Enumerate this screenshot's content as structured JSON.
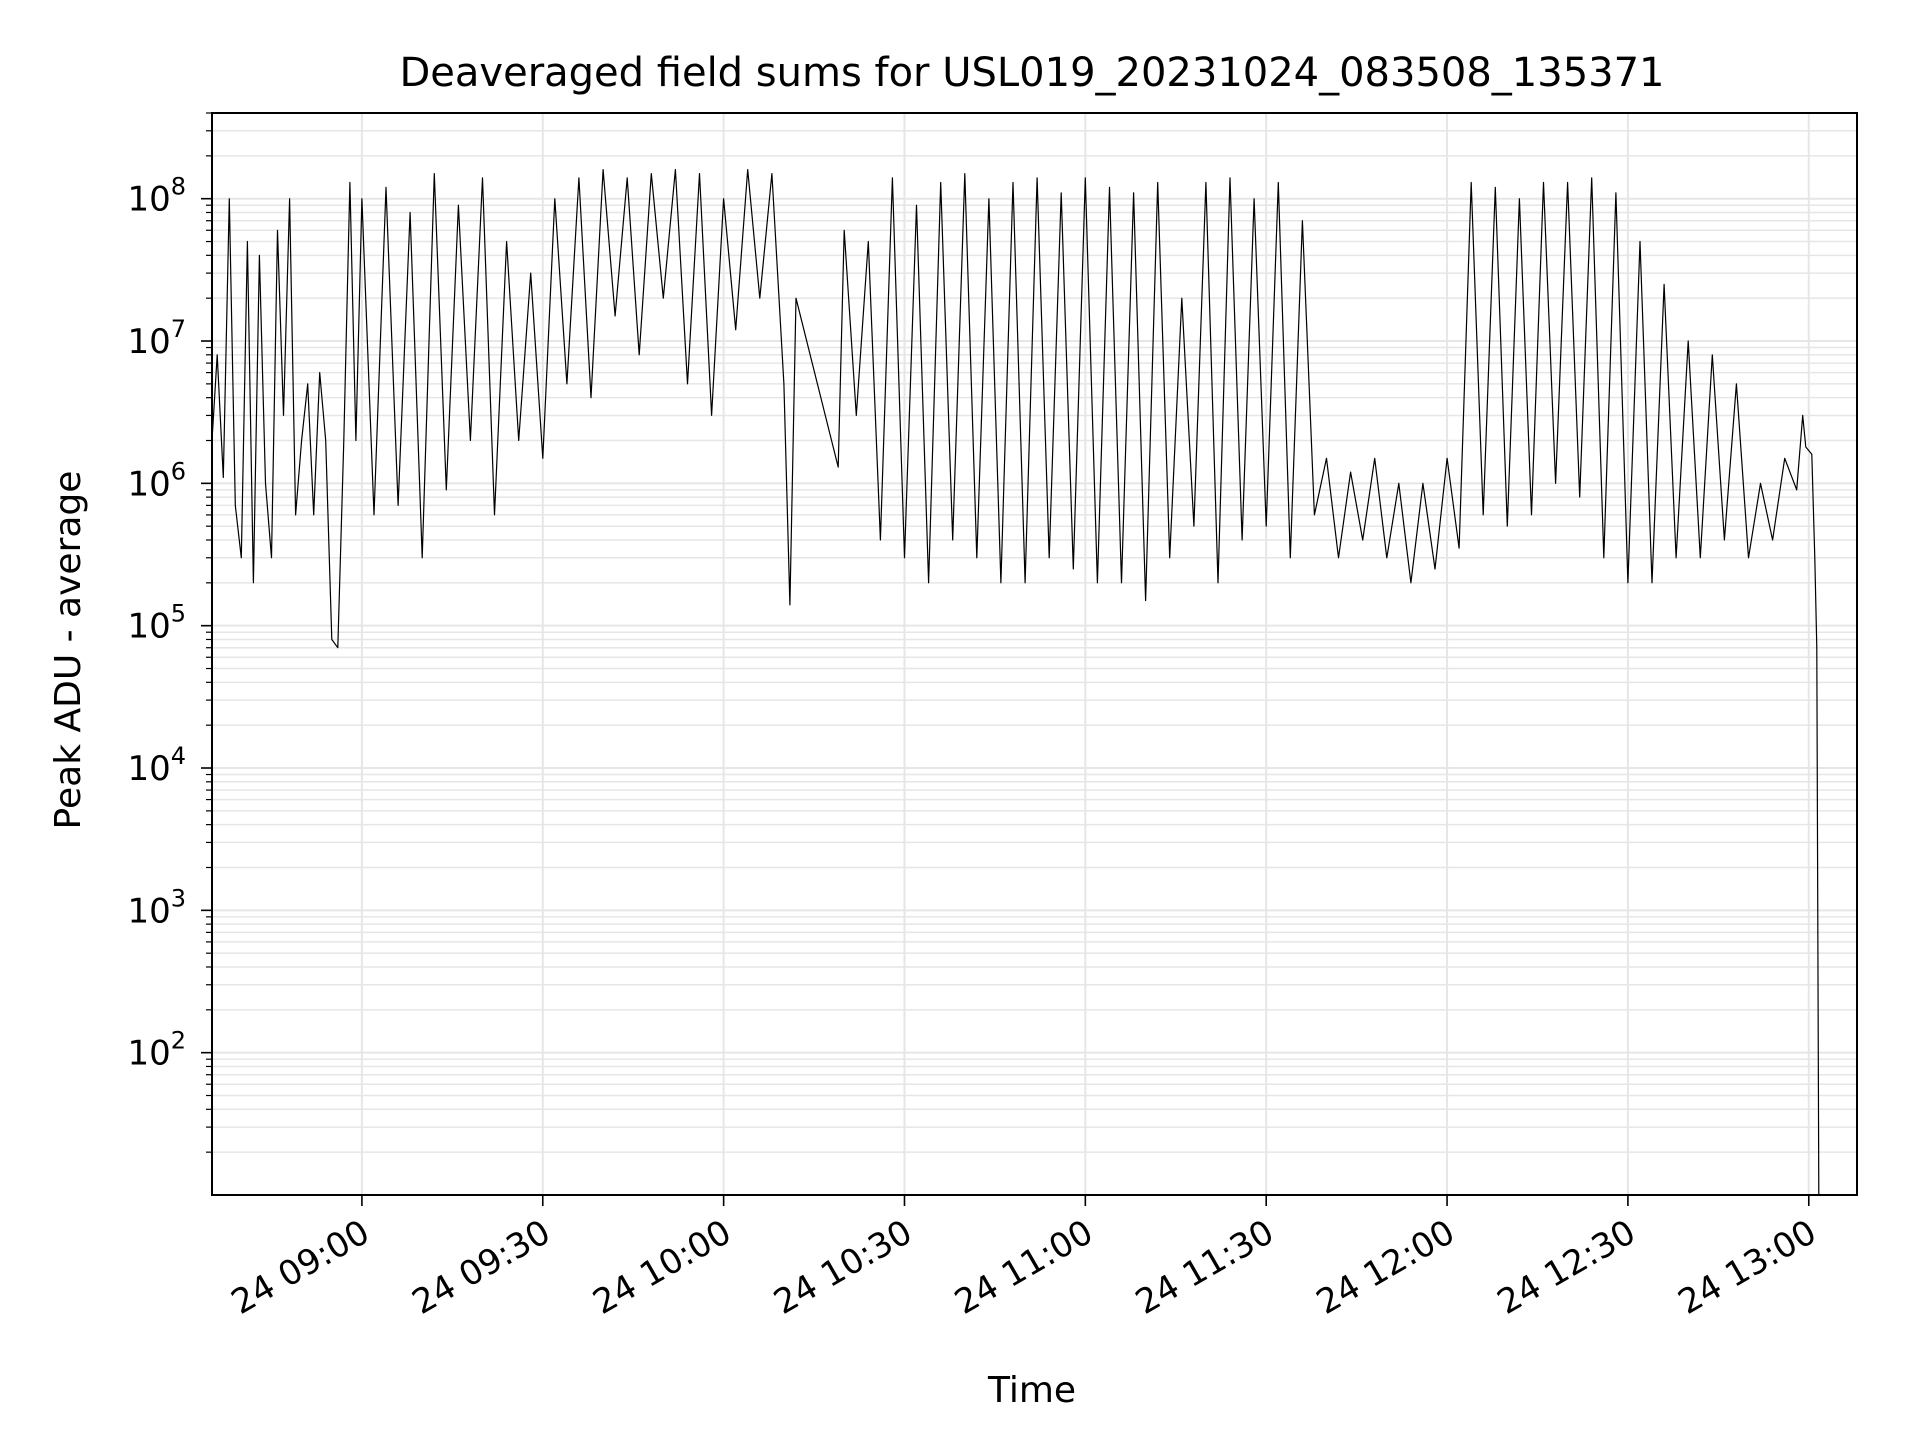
{
  "chart_data": {
    "type": "line",
    "title": "Deaveraged field sums for USL019_20231024_083508_135371",
    "xlabel": "Time",
    "ylabel": "Peak ADU - average",
    "yscale": "log",
    "ylim": [
      10,
      400000000
    ],
    "xlim": [
      "2023-10-24T08:35:08",
      "2023-10-24T13:08:00"
    ],
    "x_ticks": [
      {
        "value": "2023-10-24T09:00:00",
        "label": "24 09:00"
      },
      {
        "value": "2023-10-24T09:30:00",
        "label": "24 09:30"
      },
      {
        "value": "2023-10-24T10:00:00",
        "label": "24 10:00"
      },
      {
        "value": "2023-10-24T10:30:00",
        "label": "24 10:30"
      },
      {
        "value": "2023-10-24T11:00:00",
        "label": "24 11:00"
      },
      {
        "value": "2023-10-24T11:30:00",
        "label": "24 11:30"
      },
      {
        "value": "2023-10-24T12:00:00",
        "label": "24 12:00"
      },
      {
        "value": "2023-10-24T12:30:00",
        "label": "24 12:30"
      },
      {
        "value": "2023-10-24T13:00:00",
        "label": "24 13:00"
      }
    ],
    "y_ticks": [
      {
        "value": 100,
        "base": "10",
        "exp": "2"
      },
      {
        "value": 1000,
        "base": "10",
        "exp": "3"
      },
      {
        "value": 10000,
        "base": "10",
        "exp": "4"
      },
      {
        "value": 100000,
        "base": "10",
        "exp": "5"
      },
      {
        "value": 1000000,
        "base": "10",
        "exp": "6"
      },
      {
        "value": 10000000,
        "base": "10",
        "exp": "7"
      },
      {
        "value": 100000000,
        "base": "10",
        "exp": "8"
      }
    ],
    "grid": true,
    "line_color": "#000000",
    "grid_color": "#e6e6e6",
    "series": [
      {
        "x": [
          "2023-10-24T08:35:08",
          "2023-10-24T08:36:00",
          "2023-10-24T08:37:00",
          "2023-10-24T08:38:00",
          "2023-10-24T08:39:00",
          "2023-10-24T08:40:00",
          "2023-10-24T08:41:00",
          "2023-10-24T08:42:00",
          "2023-10-24T08:43:00",
          "2023-10-24T08:44:00",
          "2023-10-24T08:45:00",
          "2023-10-24T08:46:00",
          "2023-10-24T08:47:00",
          "2023-10-24T08:48:00",
          "2023-10-24T08:49:00",
          "2023-10-24T08:50:00",
          "2023-10-24T08:51:00",
          "2023-10-24T08:52:00",
          "2023-10-24T08:53:00",
          "2023-10-24T08:54:00",
          "2023-10-24T08:55:00",
          "2023-10-24T08:56:00",
          "2023-10-24T08:57:00",
          "2023-10-24T08:58:00",
          "2023-10-24T08:59:00",
          "2023-10-24T09:00:00",
          "2023-10-24T09:02:00",
          "2023-10-24T09:04:00",
          "2023-10-24T09:06:00",
          "2023-10-24T09:08:00",
          "2023-10-24T09:10:00",
          "2023-10-24T09:12:00",
          "2023-10-24T09:14:00",
          "2023-10-24T09:16:00",
          "2023-10-24T09:18:00",
          "2023-10-24T09:20:00",
          "2023-10-24T09:22:00",
          "2023-10-24T09:24:00",
          "2023-10-24T09:26:00",
          "2023-10-24T09:28:00",
          "2023-10-24T09:30:00",
          "2023-10-24T09:32:00",
          "2023-10-24T09:34:00",
          "2023-10-24T09:36:00",
          "2023-10-24T09:38:00",
          "2023-10-24T09:40:00",
          "2023-10-24T09:42:00",
          "2023-10-24T09:44:00",
          "2023-10-24T09:46:00",
          "2023-10-24T09:48:00",
          "2023-10-24T09:50:00",
          "2023-10-24T09:52:00",
          "2023-10-24T09:54:00",
          "2023-10-24T09:56:00",
          "2023-10-24T09:58:00",
          "2023-10-24T10:00:00",
          "2023-10-24T10:02:00",
          "2023-10-24T10:04:00",
          "2023-10-24T10:06:00",
          "2023-10-24T10:08:00",
          "2023-10-24T10:10:00",
          "2023-10-24T10:11:00",
          "2023-10-24T10:12:00",
          "2023-10-24T10:19:00",
          "2023-10-24T10:20:00",
          "2023-10-24T10:22:00",
          "2023-10-24T10:24:00",
          "2023-10-24T10:26:00",
          "2023-10-24T10:28:00",
          "2023-10-24T10:30:00",
          "2023-10-24T10:32:00",
          "2023-10-24T10:34:00",
          "2023-10-24T10:36:00",
          "2023-10-24T10:38:00",
          "2023-10-24T10:40:00",
          "2023-10-24T10:42:00",
          "2023-10-24T10:44:00",
          "2023-10-24T10:46:00",
          "2023-10-24T10:48:00",
          "2023-10-24T10:50:00",
          "2023-10-24T10:52:00",
          "2023-10-24T10:54:00",
          "2023-10-24T10:56:00",
          "2023-10-24T10:58:00",
          "2023-10-24T11:00:00",
          "2023-10-24T11:02:00",
          "2023-10-24T11:04:00",
          "2023-10-24T11:06:00",
          "2023-10-24T11:08:00",
          "2023-10-24T11:10:00",
          "2023-10-24T11:12:00",
          "2023-10-24T11:14:00",
          "2023-10-24T11:16:00",
          "2023-10-24T11:18:00",
          "2023-10-24T11:20:00",
          "2023-10-24T11:22:00",
          "2023-10-24T11:24:00",
          "2023-10-24T11:26:00",
          "2023-10-24T11:28:00",
          "2023-10-24T11:30:00",
          "2023-10-24T11:32:00",
          "2023-10-24T11:34:00",
          "2023-10-24T11:36:00",
          "2023-10-24T11:38:00",
          "2023-10-24T11:40:00",
          "2023-10-24T11:42:00",
          "2023-10-24T11:44:00",
          "2023-10-24T11:46:00",
          "2023-10-24T11:48:00",
          "2023-10-24T11:50:00",
          "2023-10-24T11:52:00",
          "2023-10-24T11:54:00",
          "2023-10-24T11:56:00",
          "2023-10-24T11:58:00",
          "2023-10-24T12:00:00",
          "2023-10-24T12:02:00",
          "2023-10-24T12:04:00",
          "2023-10-24T12:06:00",
          "2023-10-24T12:08:00",
          "2023-10-24T12:10:00",
          "2023-10-24T12:12:00",
          "2023-10-24T12:14:00",
          "2023-10-24T12:16:00",
          "2023-10-24T12:18:00",
          "2023-10-24T12:20:00",
          "2023-10-24T12:22:00",
          "2023-10-24T12:24:00",
          "2023-10-24T12:26:00",
          "2023-10-24T12:28:00",
          "2023-10-24T12:30:00",
          "2023-10-24T12:32:00",
          "2023-10-24T12:34:00",
          "2023-10-24T12:36:00",
          "2023-10-24T12:38:00",
          "2023-10-24T12:40:00",
          "2023-10-24T12:42:00",
          "2023-10-24T12:44:00",
          "2023-10-24T12:46:00",
          "2023-10-24T12:48:00",
          "2023-10-24T12:50:00",
          "2023-10-24T12:52:00",
          "2023-10-24T12:54:00",
          "2023-10-24T12:56:00",
          "2023-10-24T12:58:00",
          "2023-10-24T12:59:00",
          "2023-10-24T12:59:30",
          "2023-10-24T13:00:00",
          "2023-10-24T13:00:30",
          "2023-10-24T13:01:00",
          "2023-10-24T13:01:20",
          "2023-10-24T13:01:40"
        ],
        "y": [
          2000000,
          8000000,
          1100000,
          100000000,
          700000,
          300000,
          50000000,
          200000,
          40000000,
          1000000,
          300000,
          60000000,
          3000000,
          100000000,
          600000,
          2000000,
          5000000,
          600000,
          6000000,
          2000000,
          80000,
          70000,
          2000000,
          130000000,
          2000000,
          100000000,
          600000,
          120000000,
          700000,
          80000000,
          300000,
          150000000,
          900000,
          90000000,
          2000000,
          140000000,
          600000,
          50000000,
          2000000,
          30000000,
          1500000,
          100000000,
          5000000,
          140000000,
          4000000,
          160000000,
          15000000,
          140000000,
          8000000,
          150000000,
          20000000,
          160000000,
          5000000,
          150000000,
          3000000,
          100000000,
          12000000,
          160000000,
          20000000,
          150000000,
          5000000,
          140000,
          20000000,
          1300000,
          60000000,
          3000000,
          50000000,
          400000,
          140000000,
          300000,
          90000000,
          200000,
          130000000,
          400000,
          150000000,
          300000,
          100000000,
          200000,
          130000000,
          200000,
          140000000,
          300000,
          110000000,
          250000,
          140000000,
          200000,
          120000000,
          200000,
          110000000,
          150000,
          130000000,
          300000,
          20000000,
          500000,
          130000000,
          200000,
          140000000,
          400000,
          100000000,
          500000,
          130000000,
          300000,
          70000000,
          600000,
          1500000,
          300000,
          1200000,
          400000,
          1500000,
          300000,
          1000000,
          200000,
          1000000,
          250000,
          1500000,
          350000,
          130000000,
          600000,
          120000000,
          500000,
          100000000,
          600000,
          130000000,
          1000000,
          130000000,
          800000,
          140000000,
          300000,
          110000000,
          200000,
          50000000,
          200000,
          25000000,
          300000,
          10000000,
          300000,
          8000000,
          400000,
          5000000,
          300000,
          1000000,
          400000,
          1500000,
          900000,
          3000000,
          1800000,
          1700000,
          1600000,
          300000,
          70000,
          10
        ]
      }
    ]
  }
}
